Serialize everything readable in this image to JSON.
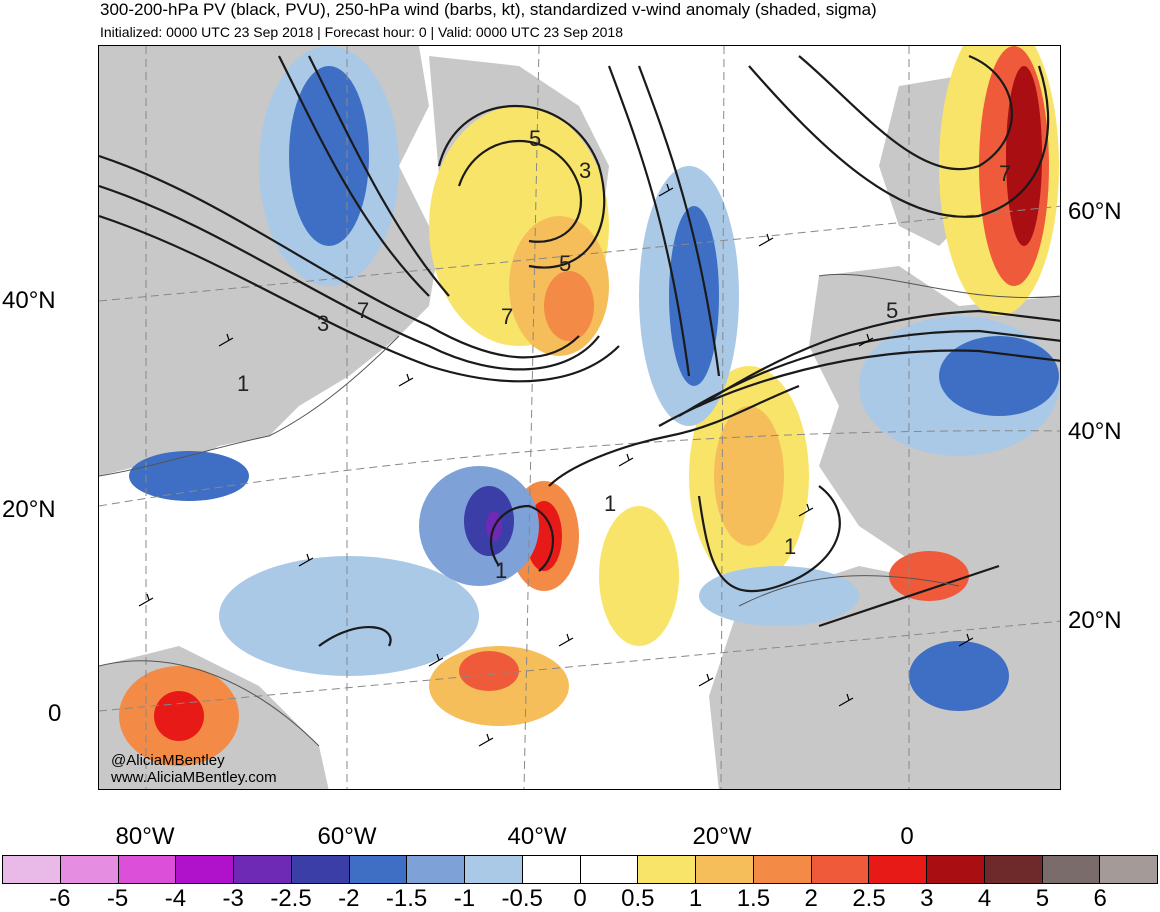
{
  "header": {
    "title": "300-200-hPa PV (black, PVU), 250-hPa wind (barbs, kt), standardized v-wind anomaly (shaded, sigma)",
    "subtitle": "Initialized: 0000 UTC 23 Sep 2018 | Forecast hour: 0 | Valid: 0000 UTC 23 Sep 2018"
  },
  "map": {
    "left_lat_labels": [
      "40°N",
      "20°N",
      "0"
    ],
    "right_lat_labels": [
      "60°N",
      "40°N",
      "20°N"
    ],
    "lon_labels": [
      "80°W",
      "60°W",
      "40°W",
      "20°W",
      "0"
    ],
    "contour_labels": [
      "5",
      "3",
      "7",
      "5",
      "3",
      "7",
      "1",
      "1",
      "1",
      "5",
      "7",
      "1"
    ],
    "credit": {
      "handle": "@AliciaMBentley",
      "website": "www.AliciaMBentley.com"
    }
  },
  "colorbar": {
    "tick_labels": [
      "-6",
      "-5",
      "-4",
      "-3",
      "-2.5",
      "-2",
      "-1.5",
      "-1",
      "-0.5",
      "0",
      "0.5",
      "1",
      "1.5",
      "2",
      "2.5",
      "3",
      "4",
      "5",
      "6"
    ],
    "colors": [
      "#e9b9e7",
      "#e58de1",
      "#dc4fd9",
      "#b012cc",
      "#6e2ab5",
      "#3a3ea6",
      "#3f6fc4",
      "#7ea2d8",
      "#aac9e7",
      "#ffffff",
      "#ffffff",
      "#f9e46a",
      "#f5be5a",
      "#f38a45",
      "#ef5b3a",
      "#e81a17",
      "#a80e12",
      "#6e2a2a",
      "#7a6c6a",
      "#a49a98"
    ]
  },
  "legend_colors": {
    "land": "#c8c8c8",
    "pv_contour": "#1a1a1a"
  }
}
